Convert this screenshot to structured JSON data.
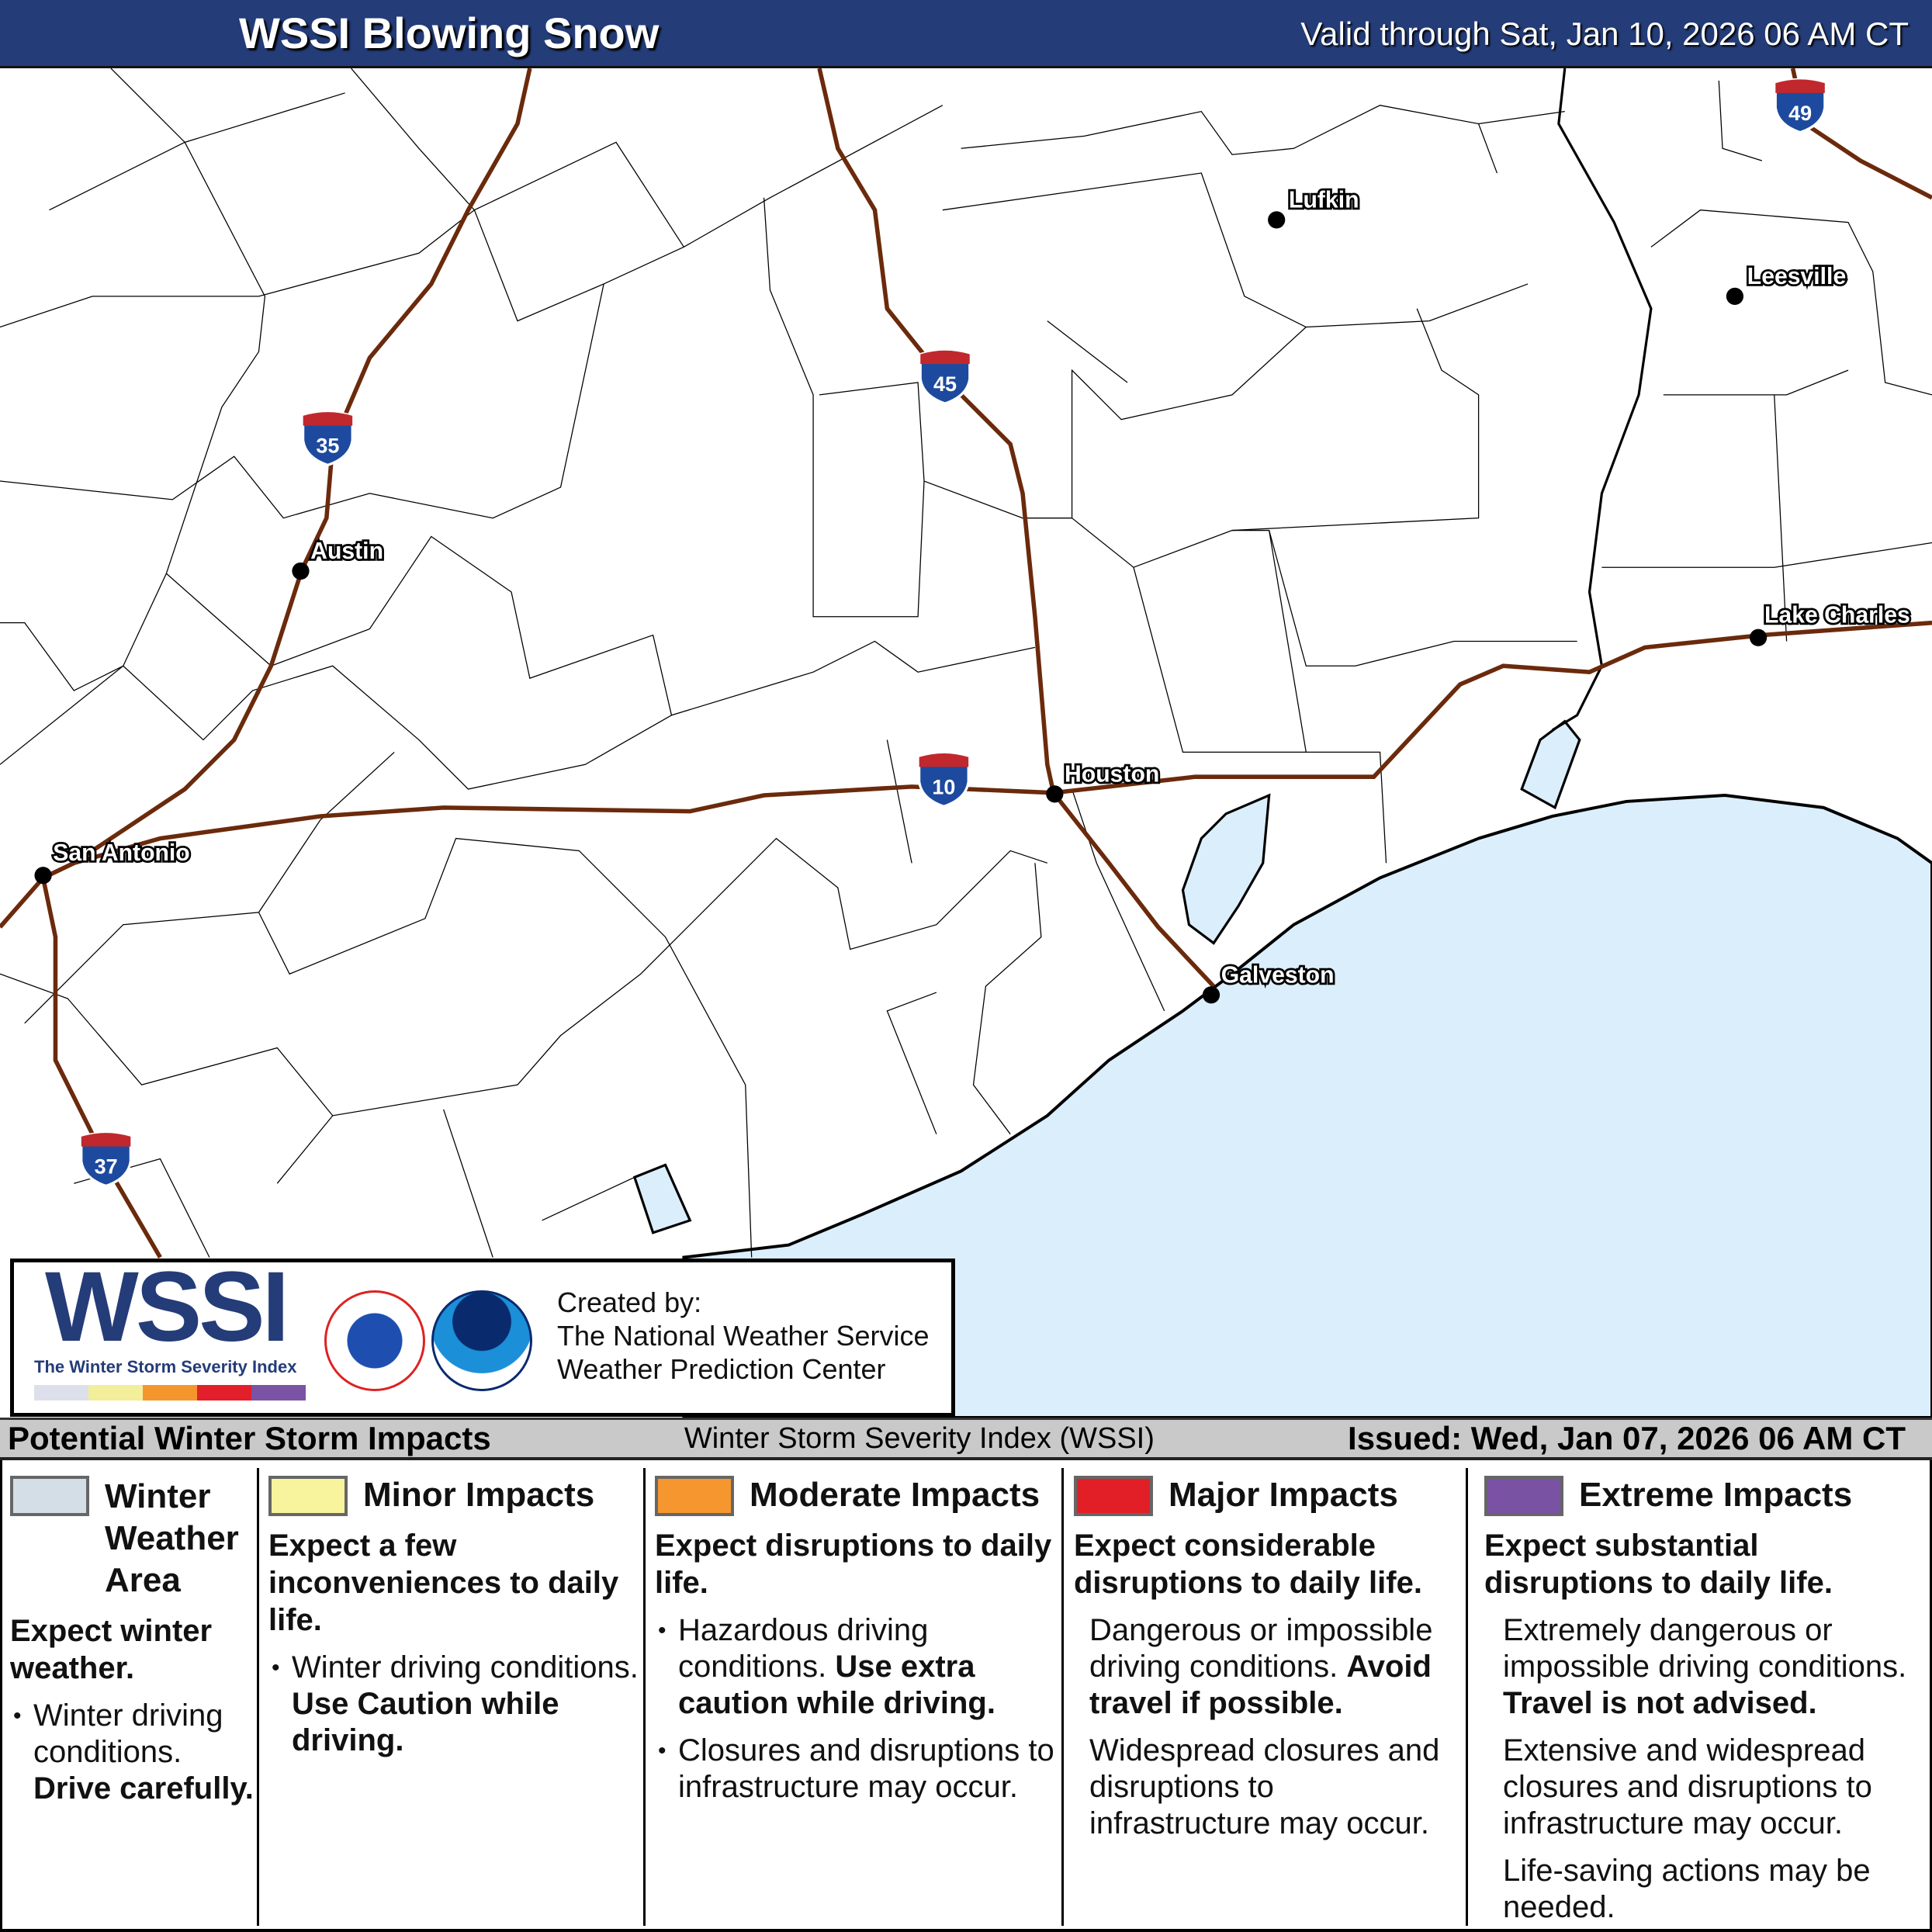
{
  "header": {
    "title": "WSSI Blowing Snow",
    "valid": "Valid through Sat, Jan 10, 2026 06 AM CT"
  },
  "map": {
    "colors": {
      "water": "#dbeefc",
      "interstate": "#6b2a0c",
      "county": "#000000"
    },
    "cities": [
      {
        "name": "Lufkin",
        "lon": -94.73,
        "lat": 31.34
      },
      {
        "name": "Leesville",
        "lon": -93.26,
        "lat": 31.14
      },
      {
        "name": "Austin",
        "lon": -97.74,
        "lat": 30.27
      },
      {
        "name": "San Antonio",
        "lon": -98.49,
        "lat": 29.42
      },
      {
        "name": "Houston",
        "lon": -95.37,
        "lat": 29.76
      },
      {
        "name": "Galveston",
        "lon": -94.8,
        "lat": 29.3
      },
      {
        "name": "Lake Charles",
        "lon": -93.22,
        "lat": 30.23
      }
    ],
    "interstates": [
      "35",
      "45",
      "10",
      "37",
      "49"
    ]
  },
  "logo": {
    "wordmark": "WSSI",
    "tagline": "The Winter Storm Severity Index",
    "nws_seal": "NATIONAL WEATHER SERVICE",
    "noaa_seal": "NOAA",
    "created_by": "Created by:",
    "org1": "The National Weather Service",
    "org2": "Weather Prediction Center",
    "scale_colors": [
      "#dde0ea",
      "#f2ee9a",
      "#f5962c",
      "#e21f2b",
      "#7b53a4"
    ]
  },
  "bar": {
    "left": "Potential Winter Storm Impacts",
    "center": "Winter Storm Severity Index (WSSI)",
    "right": "Issued: Wed, Jan 07, 2026 06 AM CT"
  },
  "legend": [
    {
      "title": "Winter Weather Area",
      "color": "#d3dee7",
      "summary": "Expect winter weather.",
      "bullet": "Winter driving conditions.",
      "bullet_bold": "Drive carefully."
    },
    {
      "title": "Minor Impacts",
      "color": "#f8f49d",
      "summary": "Expect a few inconveniences to daily life.",
      "bullet": "Winter driving conditions.",
      "bullet_bold": "Use Caution while driving."
    },
    {
      "title": "Moderate Impacts",
      "color": "#f6962f",
      "summary": "Expect disruptions to daily life.",
      "bullet": "Hazardous driving conditions.",
      "bullet_bold": "Use extra caution while driving.",
      "bullet2": "Closures and disruptions to infrastructure may occur."
    },
    {
      "title": "Major Impacts",
      "color": "#e21f26",
      "summary": "Expect considerable disruptions to daily life.",
      "p1": "Dangerous or impossible driving conditions.",
      "p1_bold": "Avoid travel if possible.",
      "p2": "Widespread closures and disruptions to infrastructure may occur."
    },
    {
      "title": "Extreme Impacts",
      "color": "#7952a3",
      "summary": "Expect substantial disruptions to daily life.",
      "p1": "Extremely dangerous or impossible driving conditions.",
      "p1_bold": "Travel is not advised.",
      "p2": "Extensive and widespread closures and disruptions to infrastructure may occur.",
      "p3": "Life-saving actions may be needed."
    }
  ]
}
